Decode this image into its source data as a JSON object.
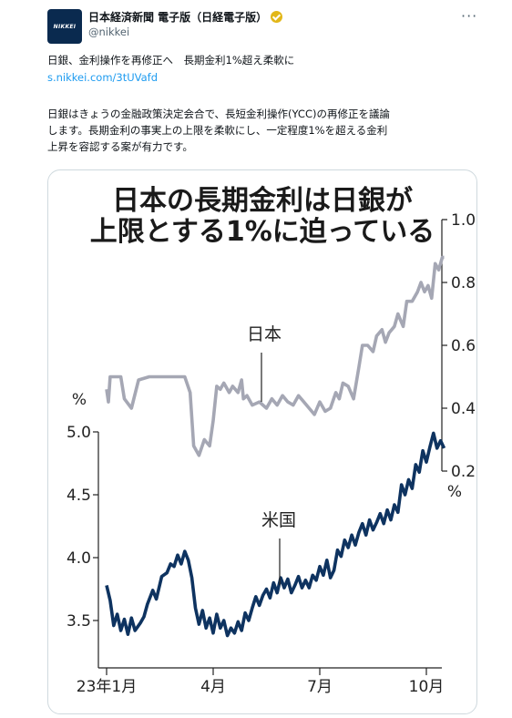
{
  "tweet": {
    "avatar_text": "NIKKEI",
    "display_name": "日本経済新聞 電子版（日経電子版）",
    "verified_icon": "verified-badge-icon",
    "handle": "@nikkei",
    "more_icon": "more-icon",
    "more_label": "···",
    "headline": "日銀、金利操作を再修正へ　長期金利1%超え柔軟に",
    "link": "s.nikkei.com/3tUVafd",
    "body_lines": [
      "日銀はきょうの金融政策決定会合で、長短金利操作(YCC)の再修正を議論",
      "します。長期金利の事実上の上限を柔軟にし、一定程度1%を超える金利",
      "上昇を容認する案が有力です。"
    ]
  },
  "chart_data": {
    "type": "line",
    "title_lines": [
      "日本の長期金利は日銀が",
      "上限とする1%に迫っている"
    ],
    "x_tick_labels": [
      "23年1月",
      "4月",
      "7月",
      "10月"
    ],
    "x_ticks": [
      0,
      3,
      6,
      9
    ],
    "x_range": [
      0,
      9.6
    ],
    "series": [
      {
        "name": "日本",
        "color": "#a5a7b4",
        "axis": "right",
        "unit": "%",
        "ylim": [
          0.2,
          1.0
        ],
        "y_ticks": [
          1.0,
          0.8,
          0.6,
          0.4,
          0.2
        ],
        "y_tick_labels": [
          "1.0",
          "0.8",
          "0.6",
          "0.4",
          "0.2"
        ],
        "points": [
          [
            0.0,
            0.46
          ],
          [
            0.05,
            0.42
          ],
          [
            0.1,
            0.5
          ],
          [
            0.4,
            0.5
          ],
          [
            0.5,
            0.43
          ],
          [
            0.7,
            0.4
          ],
          [
            0.9,
            0.49
          ],
          [
            1.2,
            0.5
          ],
          [
            2.2,
            0.5
          ],
          [
            2.35,
            0.45
          ],
          [
            2.45,
            0.28
          ],
          [
            2.6,
            0.25
          ],
          [
            2.75,
            0.3
          ],
          [
            2.9,
            0.28
          ],
          [
            3.0,
            0.36
          ],
          [
            3.1,
            0.47
          ],
          [
            3.2,
            0.46
          ],
          [
            3.3,
            0.48
          ],
          [
            3.45,
            0.45
          ],
          [
            3.55,
            0.47
          ],
          [
            3.7,
            0.45
          ],
          [
            3.8,
            0.49
          ],
          [
            3.85,
            0.43
          ],
          [
            3.95,
            0.44
          ],
          [
            4.1,
            0.41
          ],
          [
            4.3,
            0.42
          ],
          [
            4.5,
            0.4
          ],
          [
            4.65,
            0.43
          ],
          [
            4.8,
            0.41
          ],
          [
            4.95,
            0.44
          ],
          [
            5.1,
            0.42
          ],
          [
            5.25,
            0.41
          ],
          [
            5.4,
            0.44
          ],
          [
            5.55,
            0.42
          ],
          [
            5.7,
            0.4
          ],
          [
            5.85,
            0.38
          ],
          [
            6.0,
            0.42
          ],
          [
            6.15,
            0.39
          ],
          [
            6.3,
            0.4
          ],
          [
            6.45,
            0.45
          ],
          [
            6.55,
            0.43
          ],
          [
            6.65,
            0.48
          ],
          [
            6.8,
            0.47
          ],
          [
            6.95,
            0.43
          ],
          [
            7.1,
            0.53
          ],
          [
            7.2,
            0.6
          ],
          [
            7.35,
            0.6
          ],
          [
            7.5,
            0.58
          ],
          [
            7.6,
            0.63
          ],
          [
            7.75,
            0.65
          ],
          [
            7.85,
            0.61
          ],
          [
            7.95,
            0.64
          ],
          [
            8.1,
            0.66
          ],
          [
            8.2,
            0.7
          ],
          [
            8.35,
            0.66
          ],
          [
            8.45,
            0.74
          ],
          [
            8.6,
            0.74
          ],
          [
            8.75,
            0.77
          ],
          [
            8.85,
            0.8
          ],
          [
            8.95,
            0.77
          ],
          [
            9.05,
            0.79
          ],
          [
            9.15,
            0.75
          ],
          [
            9.25,
            0.86
          ],
          [
            9.35,
            0.84
          ],
          [
            9.45,
            0.88
          ],
          [
            9.5,
            0.88
          ]
        ]
      },
      {
        "name": "米国",
        "color": "#0e3360",
        "axis": "left",
        "unit": "%",
        "ylim": [
          3.0,
          5.0
        ],
        "y_ticks": [
          5.0,
          4.5,
          4.0,
          3.5
        ],
        "y_tick_labels": [
          "5.0",
          "4.5",
          "4.0",
          "3.5"
        ],
        "points": [
          [
            0.0,
            3.78
          ],
          [
            0.1,
            3.66
          ],
          [
            0.2,
            3.46
          ],
          [
            0.3,
            3.55
          ],
          [
            0.4,
            3.42
          ],
          [
            0.5,
            3.51
          ],
          [
            0.6,
            3.39
          ],
          [
            0.7,
            3.52
          ],
          [
            0.8,
            3.42
          ],
          [
            0.95,
            3.48
          ],
          [
            1.05,
            3.53
          ],
          [
            1.15,
            3.63
          ],
          [
            1.3,
            3.74
          ],
          [
            1.4,
            3.67
          ],
          [
            1.55,
            3.85
          ],
          [
            1.7,
            3.88
          ],
          [
            1.8,
            3.95
          ],
          [
            1.9,
            3.93
          ],
          [
            2.0,
            4.02
          ],
          [
            2.1,
            3.95
          ],
          [
            2.2,
            4.05
          ],
          [
            2.3,
            3.98
          ],
          [
            2.4,
            3.84
          ],
          [
            2.5,
            3.6
          ],
          [
            2.6,
            3.47
          ],
          [
            2.7,
            3.58
          ],
          [
            2.8,
            3.44
          ],
          [
            2.9,
            3.52
          ],
          [
            3.0,
            3.4
          ],
          [
            3.1,
            3.55
          ],
          [
            3.2,
            3.44
          ],
          [
            3.3,
            3.5
          ],
          [
            3.4,
            3.38
          ],
          [
            3.5,
            3.44
          ],
          [
            3.6,
            3.4
          ],
          [
            3.7,
            3.49
          ],
          [
            3.8,
            3.42
          ],
          [
            3.9,
            3.56
          ],
          [
            4.0,
            3.5
          ],
          [
            4.1,
            3.6
          ],
          [
            4.2,
            3.69
          ],
          [
            4.3,
            3.62
          ],
          [
            4.4,
            3.7
          ],
          [
            4.5,
            3.75
          ],
          [
            4.6,
            3.68
          ],
          [
            4.7,
            3.8
          ],
          [
            4.8,
            3.72
          ],
          [
            4.9,
            3.84
          ],
          [
            5.0,
            3.76
          ],
          [
            5.1,
            3.83
          ],
          [
            5.2,
            3.72
          ],
          [
            5.3,
            3.78
          ],
          [
            5.4,
            3.85
          ],
          [
            5.5,
            3.76
          ],
          [
            5.6,
            3.82
          ],
          [
            5.7,
            3.76
          ],
          [
            5.8,
            3.86
          ],
          [
            5.9,
            3.82
          ],
          [
            6.0,
            3.93
          ],
          [
            6.1,
            3.86
          ],
          [
            6.2,
            3.98
          ],
          [
            6.3,
            3.84
          ],
          [
            6.4,
            3.9
          ],
          [
            6.5,
            4.06
          ],
          [
            6.6,
            4.01
          ],
          [
            6.7,
            4.14
          ],
          [
            6.8,
            4.08
          ],
          [
            6.9,
            4.18
          ],
          [
            7.0,
            4.1
          ],
          [
            7.1,
            4.2
          ],
          [
            7.2,
            4.27
          ],
          [
            7.3,
            4.18
          ],
          [
            7.4,
            4.3
          ],
          [
            7.5,
            4.22
          ],
          [
            7.6,
            4.28
          ],
          [
            7.7,
            4.35
          ],
          [
            7.8,
            4.27
          ],
          [
            7.9,
            4.38
          ],
          [
            8.0,
            4.3
          ],
          [
            8.1,
            4.42
          ],
          [
            8.2,
            4.36
          ],
          [
            8.3,
            4.58
          ],
          [
            8.4,
            4.5
          ],
          [
            8.5,
            4.62
          ],
          [
            8.6,
            4.55
          ],
          [
            8.7,
            4.74
          ],
          [
            8.8,
            4.68
          ],
          [
            8.9,
            4.85
          ],
          [
            9.0,
            4.76
          ],
          [
            9.1,
            4.88
          ],
          [
            9.2,
            4.99
          ],
          [
            9.3,
            4.87
          ],
          [
            9.4,
            4.93
          ],
          [
            9.5,
            4.87
          ]
        ]
      }
    ]
  }
}
